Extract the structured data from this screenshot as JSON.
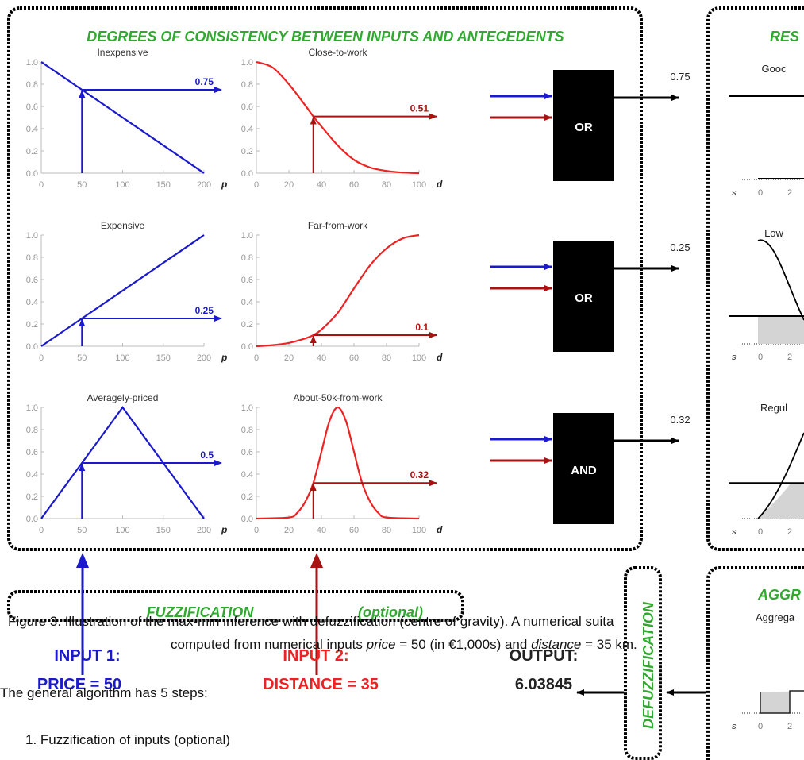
{
  "main_title": "DEGREES OF CONSISTENCY BETWEEN INPUTS AND ANTECEDENTS",
  "right_title": "RES",
  "aggr_title": "AGGR",
  "aggr_subtitle": "Aggrega",
  "fuzzification_label": "FUZZIFICATION",
  "optional_label": "(optional)",
  "defuzz_label": "DEFUZZIFICATION",
  "input1_label": "INPUT 1:",
  "input1_value": "PRICE = 50",
  "input2_label": "INPUT 2:",
  "input2_value": "DISTANCE = 35",
  "output_label": "OUTPUT:",
  "output_value": "6.03845",
  "caption_line1": "Figure 3. Illustration of the max-min inference with defuzzification (centre of gravity). A numerical suita",
  "caption_line2_pre": "computed from numerical inputs ",
  "caption_price_var": "price",
  "caption_line2_mid": " = 50 (in €1,000s) and ",
  "caption_distance_var": "distance",
  "caption_line2_post": " = 35 km.",
  "body_line1": "The general algorithm has 5 steps:",
  "body_list_item1": "1.  Fuzzification of inputs (optional)",
  "colors": {
    "frame": "#000000",
    "title_green": "#2faa2f",
    "blue": "#1a1acc",
    "red": "#ee2222",
    "dark_red": "#aa1111",
    "gray_fill": "#d4d4d4"
  },
  "chart_data": [
    {
      "type": "line",
      "title": "Inexpensive",
      "xlabel": "p",
      "xlim": [
        0,
        200
      ],
      "ylim": [
        0,
        1
      ],
      "xticks": [
        0,
        50,
        100,
        150,
        200
      ],
      "yticks": [
        0.0,
        0.2,
        0.4,
        0.6,
        0.8,
        1.0
      ],
      "series": [
        {
          "x": [
            0,
            200
          ],
          "y": [
            1,
            0
          ]
        }
      ],
      "input": 50,
      "degree": 0.75,
      "degree_label": "0.75"
    },
    {
      "type": "line",
      "title": "Close-to-work",
      "xlabel": "d",
      "xlim": [
        0,
        100
      ],
      "ylim": [
        0,
        1
      ],
      "xticks": [
        0,
        20,
        40,
        60,
        80,
        100
      ],
      "yticks": [
        0.0,
        0.2,
        0.4,
        0.6,
        0.8,
        1.0
      ],
      "series": [
        {
          "x": [
            0,
            10,
            20,
            30,
            35,
            40,
            50,
            60,
            70,
            80,
            90,
            100
          ],
          "y": [
            1.0,
            0.95,
            0.8,
            0.61,
            0.51,
            0.42,
            0.25,
            0.12,
            0.05,
            0.02,
            0.005,
            0.0
          ]
        }
      ],
      "input": 35,
      "degree": 0.51,
      "degree_label": "0.51"
    },
    {
      "type": "line",
      "title": "Expensive",
      "xlabel": "p",
      "xlim": [
        0,
        200
      ],
      "ylim": [
        0,
        1
      ],
      "xticks": [
        0,
        50,
        100,
        150,
        200
      ],
      "yticks": [
        0.0,
        0.2,
        0.4,
        0.6,
        0.8,
        1.0
      ],
      "series": [
        {
          "x": [
            0,
            200
          ],
          "y": [
            0,
            1
          ]
        }
      ],
      "input": 50,
      "degree": 0.25,
      "degree_label": "0.25"
    },
    {
      "type": "line",
      "title": "Far-from-work",
      "xlabel": "d",
      "xlim": [
        0,
        100
      ],
      "ylim": [
        0,
        1
      ],
      "xticks": [
        0,
        20,
        40,
        60,
        80,
        100
      ],
      "yticks": [
        0.0,
        0.2,
        0.4,
        0.6,
        0.8,
        1.0
      ],
      "series": [
        {
          "x": [
            0,
            10,
            20,
            30,
            35,
            40,
            50,
            60,
            70,
            80,
            90,
            100
          ],
          "y": [
            0.0,
            0.01,
            0.03,
            0.07,
            0.1,
            0.15,
            0.3,
            0.52,
            0.73,
            0.88,
            0.97,
            1.0
          ]
        }
      ],
      "input": 35,
      "degree": 0.1,
      "degree_label": "0.1"
    },
    {
      "type": "line",
      "title": "Averagely-priced",
      "xlabel": "p",
      "xlim": [
        0,
        200
      ],
      "ylim": [
        0,
        1
      ],
      "xticks": [
        0,
        50,
        100,
        150,
        200
      ],
      "yticks": [
        0.0,
        0.2,
        0.4,
        0.6,
        0.8,
        1.0
      ],
      "series": [
        {
          "x": [
            0,
            100,
            200
          ],
          "y": [
            0,
            1,
            0
          ]
        }
      ],
      "input": 50,
      "degree": 0.5,
      "degree_label": "0.5"
    },
    {
      "type": "line",
      "title": "About-50k-from-work",
      "xlabel": "d",
      "xlim": [
        0,
        100
      ],
      "ylim": [
        0,
        1
      ],
      "xticks": [
        0,
        20,
        40,
        60,
        80,
        100
      ],
      "yticks": [
        0.0,
        0.2,
        0.4,
        0.6,
        0.8,
        1.0
      ],
      "series": [
        {
          "x": [
            0,
            20,
            25,
            30,
            35,
            40,
            45,
            50,
            55,
            60,
            65,
            70,
            75,
            80,
            100
          ],
          "y": [
            0.0,
            0.01,
            0.05,
            0.15,
            0.32,
            0.6,
            0.88,
            1.0,
            0.88,
            0.6,
            0.32,
            0.15,
            0.05,
            0.01,
            0.0
          ]
        }
      ],
      "input": 35,
      "degree": 0.32,
      "degree_label": "0.32"
    }
  ],
  "operators": [
    {
      "label": "OR",
      "result": "0.75"
    },
    {
      "label": "OR",
      "result": "0.25"
    },
    {
      "label": "AND",
      "result": "0.32"
    }
  ],
  "consequents": [
    {
      "title": "Gooc",
      "xlabel": "s",
      "ticks": [
        "0",
        "2"
      ]
    },
    {
      "title": "Low",
      "xlabel": "s",
      "ticks": [
        "0",
        "2"
      ]
    },
    {
      "title": "Regul",
      "xlabel": "s",
      "ticks": [
        "0",
        "2"
      ]
    }
  ],
  "aggregate_axis": {
    "xlabel": "s",
    "ticks": [
      "0",
      "2"
    ]
  }
}
